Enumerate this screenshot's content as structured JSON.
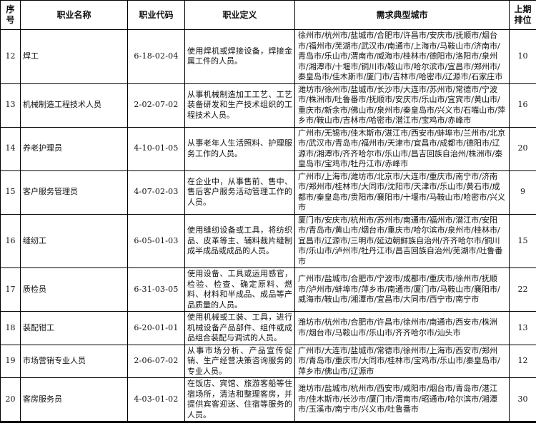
{
  "table": {
    "columns": [
      {
        "label": "序号"
      },
      {
        "label": "职业名称"
      },
      {
        "label": "职业代码"
      },
      {
        "label": "职业定义"
      },
      {
        "label": "需求典型城市"
      },
      {
        "label": "上期排位"
      }
    ],
    "rows": [
      {
        "serial": "12",
        "name": "焊工",
        "code": "6-18-02-04",
        "definition": "使用焊机或焊接设备，焊接金属工件的人员。",
        "cities": "徐州市/杭州市/盐城市/合肥市/许昌市/安庆市/抚顺市/烟台市/福州市/芜湖市/武汉市/南通市/上海市/马鞍山市/济南市/青岛市/乐山市/渭南市/威海市/桂林市/德阳市/洛阳市/泉州市/湘潭市/十堰市/铜川市/鞍山市/哈尔滨市/宜昌市/郑州市/秦皇岛市/佳木斯市/厦门市/吉林市/哈密市/辽源市/石家庄市",
        "prev_rank": "10"
      },
      {
        "serial": "13",
        "name": "机械制造工程技术人员",
        "code": "2-02-07-02",
        "definition": "从事机械制造加工工艺、工艺装备研发和生产技术组织的工程技术人员。",
        "cities": "潍坊市/徐州市/盐城市/长沙市/大连市/苏州市/常德市/宁波市/株洲市/吐鲁番市/抚顺市/安庆市/乐山市/宜宾市/黄山市/重庆市/新余市/佛山市/泉州市/秦皇岛市/兴义市/石嘴山市/萍乡市/鞍山市/吉林市/哈密市/潜江市/宝鸡市/赤峰市",
        "prev_rank": "16"
      },
      {
        "serial": "14",
        "name": "养老护理员",
        "code": "4-10-01-05",
        "definition": "从事老年人生活照料、护理服务工作的人员。",
        "cities": "广州市/无锡市/佳木斯市/湛江市/西安市/蚌埠市/兰州市/北京市/武汉市/青岛市/福州市/天津市/宜昌市/成都市/德阳市/辽源市/湘潭市/齐齐哈尔市/乐山市/昌吉回族自治州/株洲市/秦皇岛市/宝鸡市/牡丹江市/赤峰市",
        "prev_rank": "20"
      },
      {
        "serial": "15",
        "name": "客户服务管理员",
        "code": "4-07-02-03",
        "definition": "在企业中，从事售前、售中、售后客户服务活动管理工作的人员。",
        "cities": "广州市/上海市/潍坊市/北京市/大连市/重庆市/南宁市/济南市/郑州市/桂林市/大同市/沈阳市/天津市/乐山市/黄石市/成都市/秦皇岛市/贵阳市/襄阳市/十堰市/马鞍山市/哈密市/兴义市",
        "prev_rank": "9"
      },
      {
        "serial": "16",
        "name": "缝纫工",
        "code": "6-05-01-03",
        "definition": "使用缝纫设备或工具，将纺织品、皮革等主、辅料裁片缝制成半成品或成品的人员。",
        "cities": "厦门市/安庆市/杭州市/苏州市/南通市/福州市/潜江市/安阳市/青岛市/黄山市/烟台市/重庆市/哈尔滨市/泉州市/桂林市/宜昌市/辽源市/三明市/延边朝鲜族自治州/齐齐哈尔市/铜川市/乐山市/泸州市/牡丹江市/昌吉回族自治州/芜湖市/吐鲁番市",
        "prev_rank": "15"
      },
      {
        "serial": "17",
        "name": "质检员",
        "code": "6-31-03-05",
        "definition": "使用设备、工具或运用感官，检验、检查、确定原料、燃料、材料和半成品、成品等产品质量的人员。",
        "cities": "广州市/盐城市/合肥市/宁波市/成都市/重庆市/徐州市/抚顺市/泸州市/蚌埠市/萍乡市/南通市/厦门市/马鞍山市/襄阳市/威海市/鞍山市/湘潭市/宜昌市/大同市/西宁市/南宁市",
        "prev_rank": "22"
      },
      {
        "serial": "18",
        "name": "装配钳工",
        "code": "6-20-01-01",
        "definition": "使用机械或工装、工具，进行机械设备产品部件、组件或成品组合装配与调试的人员。",
        "cities": "潍坊市/杭州市/合肥市/许昌市/徐州市/南通市/西安市/株洲市/烟台市/马鞍山市/乐山市/齐齐哈尔市/汕头市",
        "prev_rank": "13"
      },
      {
        "serial": "19",
        "name": "市场营销专业人员",
        "code": "2-06-07-02",
        "definition": "从事市场分析、产品宣传促销、生产经营决策咨询服务的专业人员。",
        "cities": "广州市/大连市/盐城市/常德市/徐州市/上海市/西安市/郑州市/青岛市/重庆市/大同市/桂林市/宝鸡市/乐山市/秦皇岛市/萍乡市/佛山市/辽源市",
        "prev_rank": "12"
      },
      {
        "serial": "20",
        "name": "客房服务员",
        "code": "4-03-01-02",
        "definition": "在饭店、宾馆、旅游客船等住宿场所，清洁和整理客房，并提供宾客迎送、住宿等服务的人员。",
        "cities": "潍坊市/盐城市/杭州市/西安市/咸阳市/烟台市/青岛市/湛江市/佳木斯市/长沙市/厦门市/渭南市/昭通市/哈尔滨市/湘潭市/玉溪市/南宁市/兴义市/吐鲁番市",
        "prev_rank": "30"
      }
    ]
  }
}
